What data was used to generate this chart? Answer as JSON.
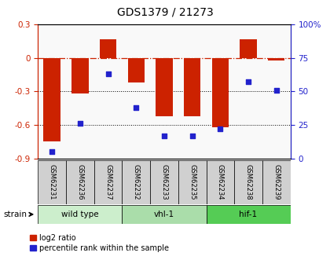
{
  "title": "GDS1379 / 21273",
  "samples": [
    "GSM62231",
    "GSM62236",
    "GSM62237",
    "GSM62232",
    "GSM62233",
    "GSM62235",
    "GSM62234",
    "GSM62238",
    "GSM62239"
  ],
  "log2_ratio": [
    -0.75,
    -0.32,
    0.17,
    -0.22,
    -0.52,
    -0.52,
    -0.62,
    0.17,
    -0.02
  ],
  "percentile_rank": [
    5,
    26,
    63,
    38,
    17,
    17,
    22,
    57,
    51
  ],
  "groups": [
    {
      "label": "wild type",
      "start": 0,
      "end": 3,
      "color": "#cceecc"
    },
    {
      "label": "vhl-1",
      "start": 3,
      "end": 6,
      "color": "#aaddaa"
    },
    {
      "label": "hif-1",
      "start": 6,
      "end": 9,
      "color": "#55cc55"
    }
  ],
  "bar_color": "#cc2200",
  "dot_color": "#2222cc",
  "ylim_left": [
    -0.9,
    0.3
  ],
  "ylim_right": [
    0,
    100
  ],
  "yticks_left": [
    0.3,
    0.0,
    -0.3,
    -0.6,
    -0.9
  ],
  "yticks_right": [
    100,
    75,
    50,
    25,
    0
  ],
  "hline_y": 0.0,
  "dotted_lines": [
    -0.3,
    -0.6
  ],
  "sample_box_color": "#d0d0d0",
  "plot_bg": "#f9f9f9"
}
